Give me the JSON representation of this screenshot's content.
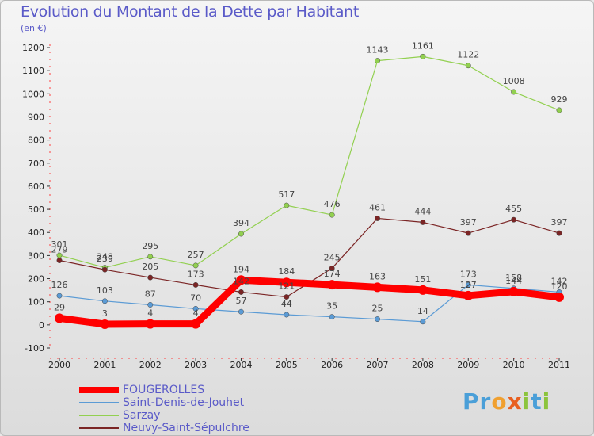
{
  "title": "Evolution du Montant de la Dette par Habitant",
  "subtitle": "(en €)",
  "logo": {
    "text": "Proxiti"
  },
  "chart_data": {
    "type": "line",
    "x": [
      "2000",
      "2001",
      "2002",
      "2003",
      "2004",
      "2005",
      "2006",
      "2007",
      "2008",
      "2009",
      "2010",
      "2011"
    ],
    "ylim": [
      -100,
      1200
    ],
    "yticks": [
      -100,
      0,
      100,
      200,
      300,
      400,
      500,
      600,
      700,
      800,
      900,
      1000,
      1100,
      1200
    ],
    "grid": false,
    "legend_placement": "bottom-left",
    "series": [
      {
        "name": "FOUGEROLLES",
        "color": "#ff0000",
        "values": [
          29,
          3,
          4,
          4,
          194,
          184,
          174,
          163,
          151,
          127,
          144,
          120
        ],
        "labels": [
          "29",
          "3",
          "4",
          "4",
          "194",
          "184",
          "174",
          "163",
          "151",
          "127",
          "144",
          "120"
        ]
      },
      {
        "name": "Saint-Denis-de-Jouhet",
        "color": "#5b9bd5",
        "values": [
          126,
          103,
          87,
          70,
          57,
          44,
          35,
          25,
          14,
          173,
          158,
          142
        ],
        "labels": [
          "126",
          "103",
          "87",
          "70",
          "57",
          "44",
          "35",
          "25",
          "14",
          "173",
          "158",
          "142"
        ]
      },
      {
        "name": "Sarzay",
        "color": "#92d050",
        "values": [
          301,
          248,
          295,
          257,
          394,
          517,
          476,
          1143,
          1161,
          1122,
          1008,
          929
        ],
        "labels": [
          "301",
          "248",
          "295",
          "257",
          "394",
          "517",
          "476",
          "1143",
          "1161",
          "1122",
          "1008",
          "929"
        ]
      },
      {
        "name": "Neuvy-Saint-Sépulchre",
        "color": "#7b2525",
        "values": [
          279,
          239,
          205,
          173,
          142,
          121,
          245,
          461,
          444,
          397,
          455,
          397
        ],
        "labels": [
          "279",
          "239",
          "205",
          "173",
          "142",
          "121",
          "245",
          "461",
          "444",
          "397",
          "455",
          "397"
        ]
      }
    ]
  }
}
